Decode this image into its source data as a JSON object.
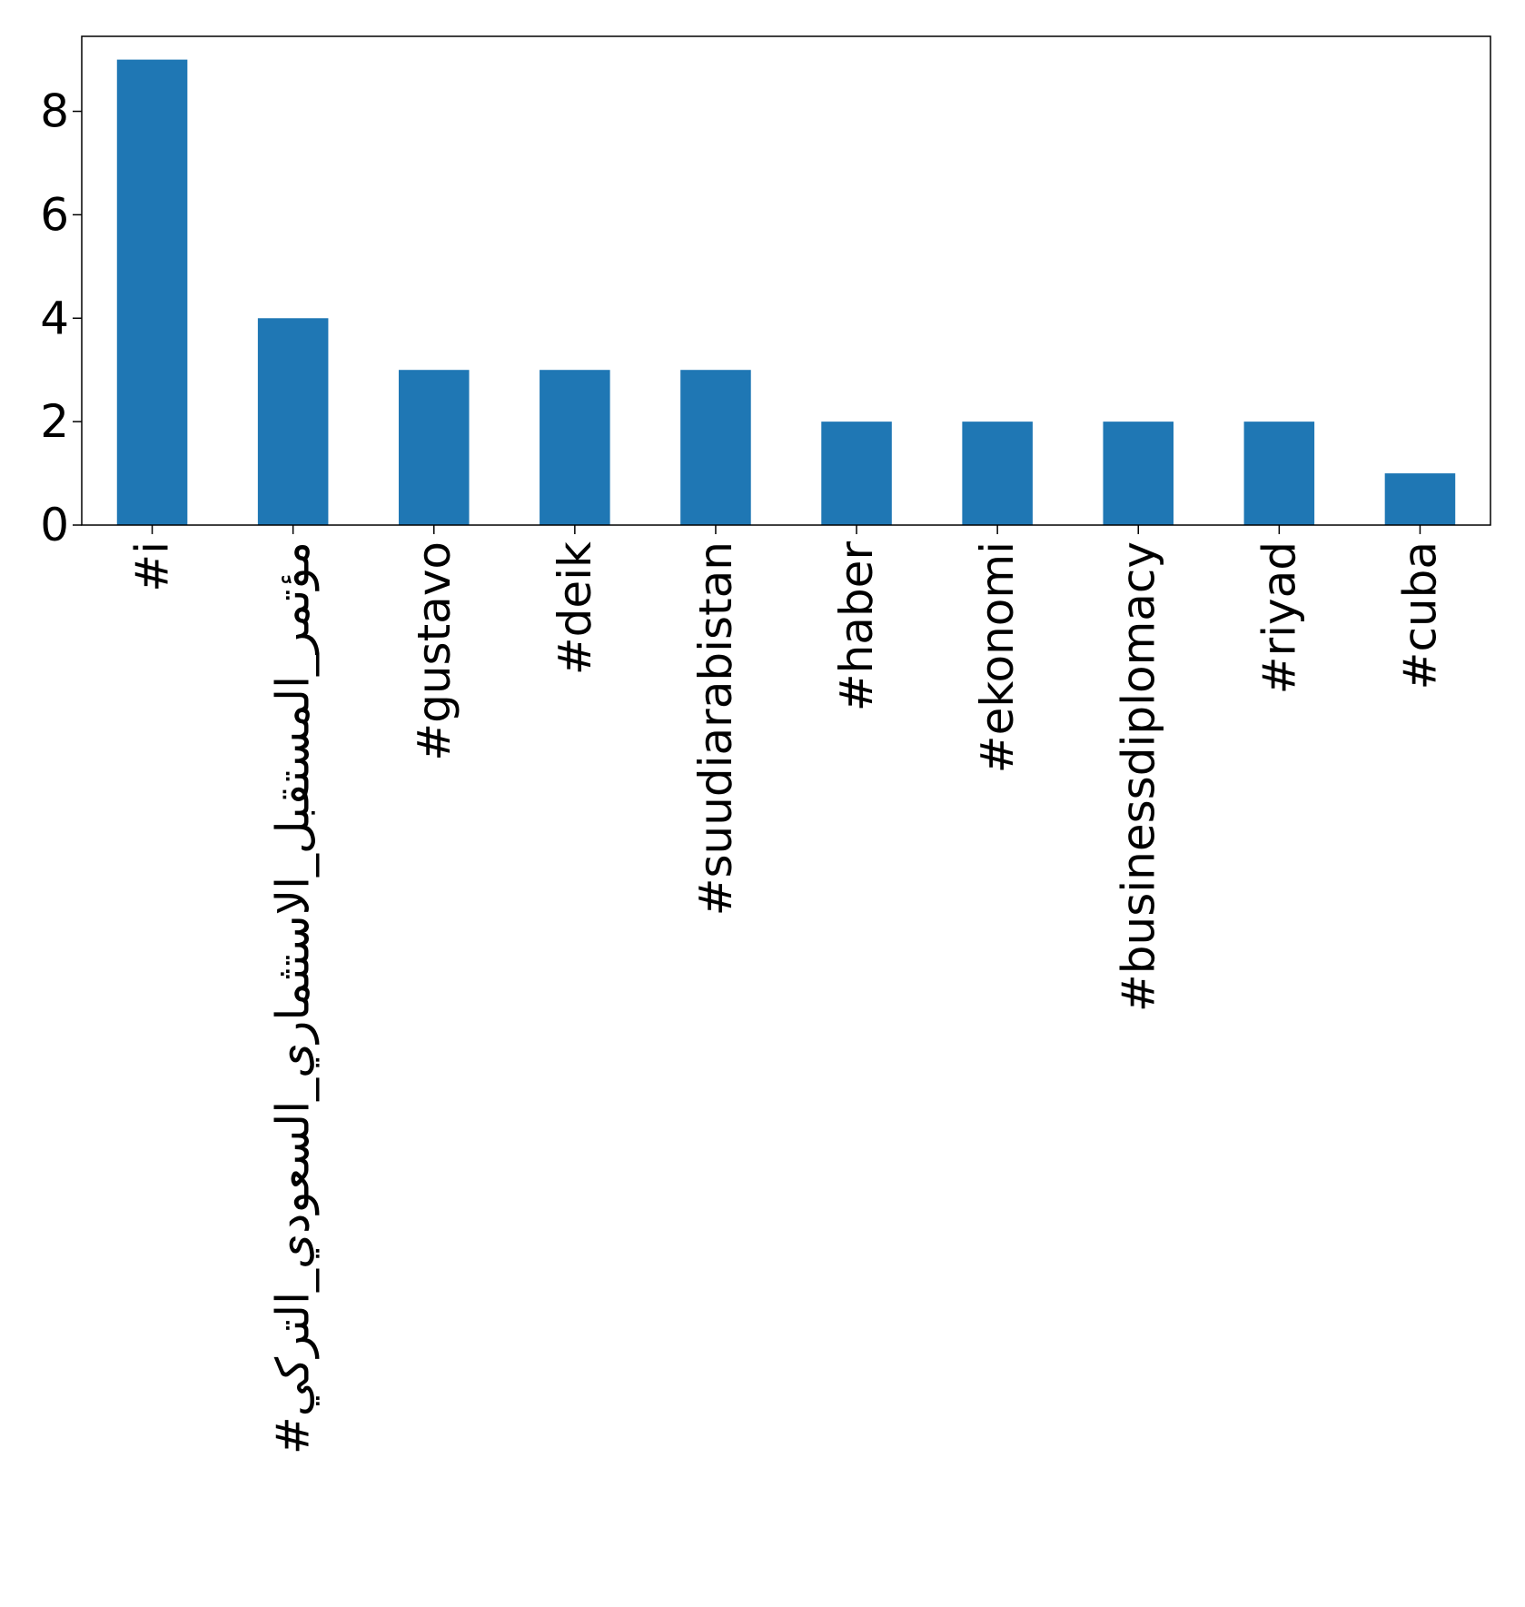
{
  "chart_data": {
    "type": "bar",
    "title": "",
    "xlabel": "",
    "ylabel": "",
    "categories": [
      "#i",
      "#مؤتمر_المستقبل_الاستثماري_السعودي_التركي",
      "#gustavo",
      "#deik",
      "#suudiarabistan",
      "#haber",
      "#ekonomi",
      "#businessdiplomacy",
      "#riyad",
      "#cuba"
    ],
    "values": [
      9,
      4,
      3,
      3,
      3,
      2,
      2,
      2,
      2,
      1
    ],
    "ylim": [
      0,
      9.45
    ],
    "yticks": [
      0,
      2,
      4,
      6,
      8
    ],
    "bar_color": "#1f77b4",
    "grid": false,
    "legend": "none"
  }
}
